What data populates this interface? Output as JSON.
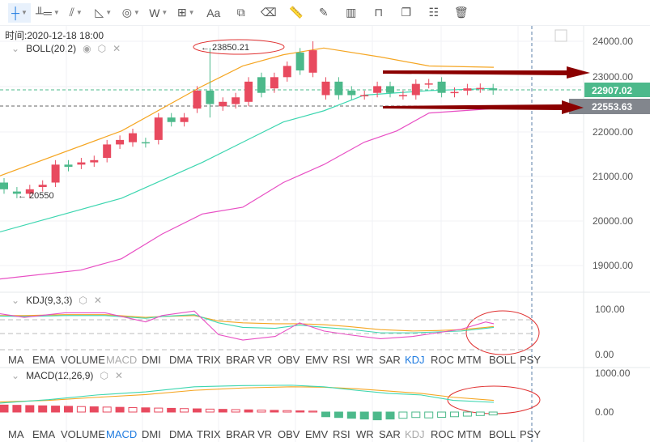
{
  "toolbar": {
    "items": [
      {
        "icon": "crosshair-icon",
        "glyph": "┼",
        "dd": true,
        "active": true
      },
      {
        "icon": "horizontal-ray-icon",
        "glyph": "╨═",
        "dd": true
      },
      {
        "icon": "parallel-lines-icon",
        "glyph": "⫽",
        "dd": true
      },
      {
        "icon": "angle-icon",
        "glyph": "◺",
        "dd": true
      },
      {
        "icon": "fibonacci-spiral-icon",
        "glyph": "◎",
        "dd": true
      },
      {
        "icon": "wave-pattern-icon",
        "glyph": "W",
        "dd": true
      },
      {
        "icon": "measure-box-icon",
        "glyph": "⊞",
        "dd": true
      },
      {
        "icon": "text-icon",
        "glyph": "Aa"
      },
      {
        "icon": "magnet-icon",
        "glyph": "⧉"
      },
      {
        "icon": "eraser-icon",
        "glyph": "⌫"
      },
      {
        "icon": "ruler-icon",
        "glyph": "📏"
      },
      {
        "icon": "pencil-icon",
        "glyph": "✎"
      },
      {
        "icon": "candles-icon",
        "glyph": "▥"
      },
      {
        "icon": "lock-icon",
        "glyph": "⊓"
      },
      {
        "icon": "copy-icon",
        "glyph": "❐"
      },
      {
        "icon": "settings-icon",
        "glyph": "☷"
      },
      {
        "icon": "trash-icon",
        "glyph": "🗑"
      }
    ]
  },
  "time_label": "时间:2020-12-18 18:00",
  "boll": {
    "label": "BOLL(20,2)",
    "high_annotation": "← 23850.21",
    "low_annotation": "← 20550"
  },
  "kdj": {
    "label": "KDJ(9,3,3)"
  },
  "macd": {
    "label": "MACD(12,26,9)"
  },
  "price_axis": [
    "24000.00",
    "23000.00",
    "22000.00",
    "21000.00",
    "20000.00",
    "19000.00"
  ],
  "price_badges": {
    "last": "22907.02",
    "crosshair": "22553.63"
  },
  "kdj_axis": [
    "100.00",
    "0.00"
  ],
  "macd_axis": [
    "1000.00",
    "0.00"
  ],
  "indicator_tabs": [
    "MA",
    "EMA",
    "VOLUME",
    "MACD",
    "DMI",
    "DMA",
    "TRIX",
    "BRAR",
    "VR",
    "OBV",
    "EMV",
    "RSI",
    "WR",
    "SAR",
    "KDJ",
    "ROC",
    "MTM",
    "BOLL",
    "PSY"
  ],
  "colors": {
    "up": "#e84a5f",
    "down": "#4cb98b",
    "upper": "#f5a623",
    "mid": "#3dd6b0",
    "lower": "#e84fc4",
    "annotation": "#8b0000",
    "active_tab": "#1e7be0"
  },
  "candles": [
    [
      20850,
      20700
    ],
    [
      20650,
      20600
    ],
    [
      20600,
      20700
    ],
    [
      20750,
      20800
    ],
    [
      20850,
      21250
    ],
    [
      21250,
      21200
    ],
    [
      21250,
      21300
    ],
    [
      21300,
      21350
    ],
    [
      21400,
      21700
    ],
    [
      21700,
      21800
    ],
    [
      21750,
      21950
    ],
    [
      21750,
      21730
    ],
    [
      21800,
      22300
    ],
    [
      22300,
      22200
    ],
    [
      22200,
      22300
    ],
    [
      22500,
      22900
    ],
    [
      22900,
      22600
    ],
    [
      22550,
      22650
    ],
    [
      22600,
      22750
    ],
    [
      22650,
      23100
    ],
    [
      23200,
      22850
    ],
    [
      22950,
      23200
    ],
    [
      23200,
      23450
    ],
    [
      23750,
      23350
    ],
    [
      23300,
      23800
    ],
    [
      22800,
      23100
    ],
    [
      23100,
      22800
    ],
    [
      22900,
      22800
    ],
    [
      22800,
      22800
    ],
    [
      22850,
      23000
    ],
    [
      23000,
      22850
    ],
    [
      22800,
      22800
    ],
    [
      22800,
      23050
    ],
    [
      23050,
      23060
    ],
    [
      23100,
      22850
    ],
    [
      22850,
      22870
    ],
    [
      22900,
      22950
    ],
    [
      22950,
      22960
    ],
    [
      22950,
      22907
    ]
  ]
}
